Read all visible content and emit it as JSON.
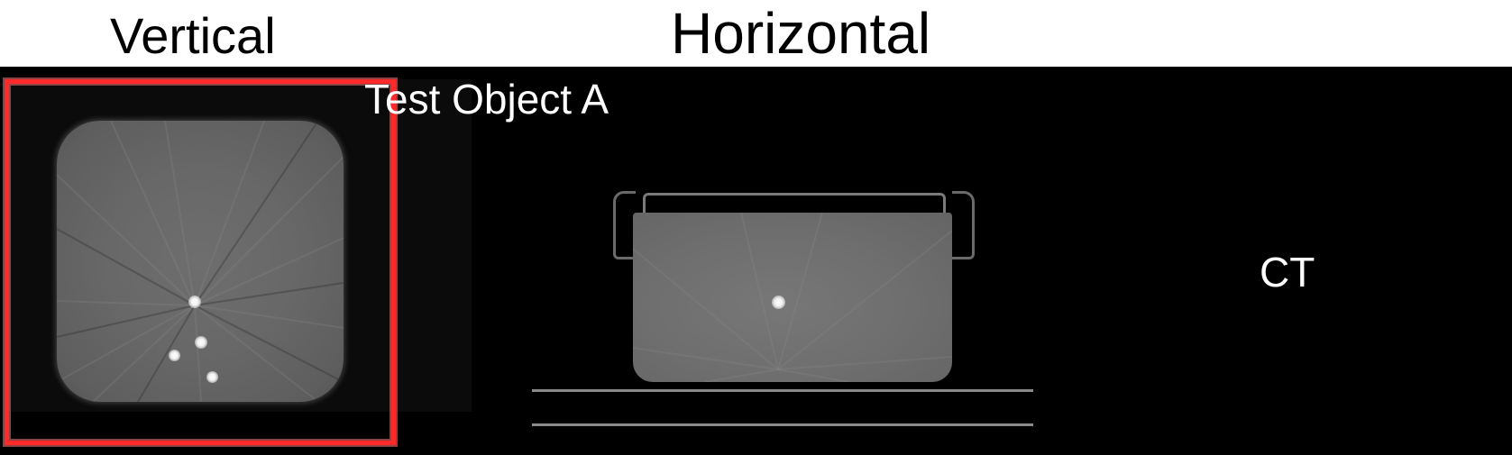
{
  "headings": {
    "vertical": "Vertical",
    "horizontal": "Horizontal"
  },
  "panel": {
    "object_label": "Test Object A",
    "modality": "CT"
  },
  "colors": {
    "background": "#000000",
    "selection_box": "#ff2a2a",
    "label_text": "#ffffff"
  }
}
